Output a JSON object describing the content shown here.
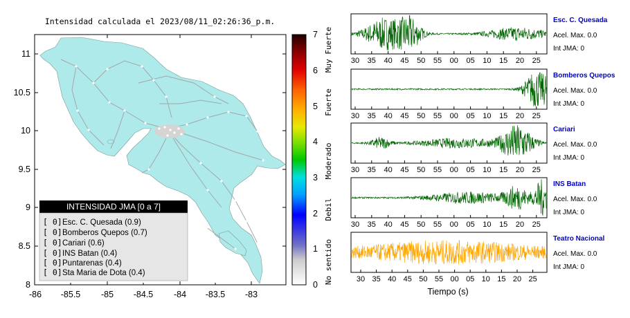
{
  "map": {
    "title": "Intensidad calculada el 2023/08/11_02:26:36_p.m.",
    "x_ticks": [
      "-86",
      "-85.5",
      "-85",
      "-84.5",
      "-84",
      "-83.5",
      "-83"
    ],
    "y_ticks": [
      "11",
      "10.5",
      "10",
      "9.5",
      "9",
      "8.5",
      "8"
    ],
    "xlim": [
      -86,
      -82.5
    ],
    "ylim": [
      8,
      11.3
    ],
    "colors": {
      "land": "#aeeaea",
      "roads": "#a0a0a0",
      "sea": "#ffffff"
    }
  },
  "legend": {
    "title": "INTENSIDAD JMA [0 a 7]",
    "items": [
      {
        "bracket": "[ 0]",
        "label": "Esc. C. Quesada (0.9)"
      },
      {
        "bracket": "[ 0]",
        "label": "Bomberos Quepos (0.7)"
      },
      {
        "bracket": "[ 0]",
        "label": "Cariari (0.6)"
      },
      {
        "bracket": "[ 0]",
        "label": "INS Batan (0.4)"
      },
      {
        "bracket": "[ 0]",
        "label": "Puntarenas (0.4)"
      },
      {
        "bracket": "[ 0]",
        "label": "Sta Maria de Dota (0.4)"
      }
    ]
  },
  "colorbar": {
    "ticks": [
      "0",
      "1",
      "2",
      "3",
      "4",
      "5",
      "6",
      "7"
    ],
    "categories": [
      "No sentido",
      "Debil",
      "Moderado",
      "Fuerte",
      "Muy Fuerte"
    ]
  },
  "traces": [
    {
      "name": "Esc. C. Quesada",
      "acel": "Acel. Max. 0.0",
      "int": "Int JMA: 0",
      "color": "#006400",
      "ticks": [
        "30",
        "35",
        "40",
        "45",
        "50",
        "55",
        "00",
        "05",
        "10",
        "15",
        "20",
        "25"
      ]
    },
    {
      "name": "Bomberos Quepos",
      "acel": "Acel. Max. 0.0",
      "int": "Int JMA: 0",
      "color": "#006400",
      "ticks": [
        "30",
        "35",
        "40",
        "45",
        "50",
        "55",
        "00",
        "05",
        "10",
        "15",
        "20",
        "25"
      ]
    },
    {
      "name": "Cariari",
      "acel": "Acel. Max. 0.0",
      "int": "Int JMA: 0",
      "color": "#006400",
      "ticks": [
        "30",
        "35",
        "40",
        "45",
        "50",
        "55",
        "00",
        "05",
        "10",
        "15",
        "20",
        "25"
      ]
    },
    {
      "name": "INS Batan",
      "acel": "Acel. Max. 0.0",
      "int": "Int JMA: 0",
      "color": "#006400",
      "ticks": [
        "30",
        "35",
        "40",
        "45",
        "50",
        "55",
        "00",
        "05",
        "10",
        "15",
        "20",
        "25"
      ]
    },
    {
      "name": "Teatro Nacional",
      "acel": "Acel. Max. 0.0",
      "int": "Int JMA: 0",
      "color": "#ffa500",
      "ticks": [
        "30",
        "35",
        "40",
        "45",
        "50",
        "55",
        "00",
        "05",
        "10",
        "15",
        "20",
        "25"
      ]
    }
  ],
  "xlabel": "Tiempo (s)",
  "chart_data": [
    {
      "type": "scatter",
      "title": "Intensidad calculada el 2023/08/11_02:26:36_p.m.",
      "xlim": [
        -86,
        -82.5
      ],
      "ylim": [
        8,
        11.3
      ]
    },
    {
      "type": "line",
      "xlabel": "Tiempo (s)",
      "series": [
        {
          "name": "Esc. C. Quesada"
        },
        {
          "name": "Bomberos Quepos"
        },
        {
          "name": "Cariari"
        },
        {
          "name": "INS Batan"
        },
        {
          "name": "Teatro Nacional"
        }
      ]
    }
  ]
}
